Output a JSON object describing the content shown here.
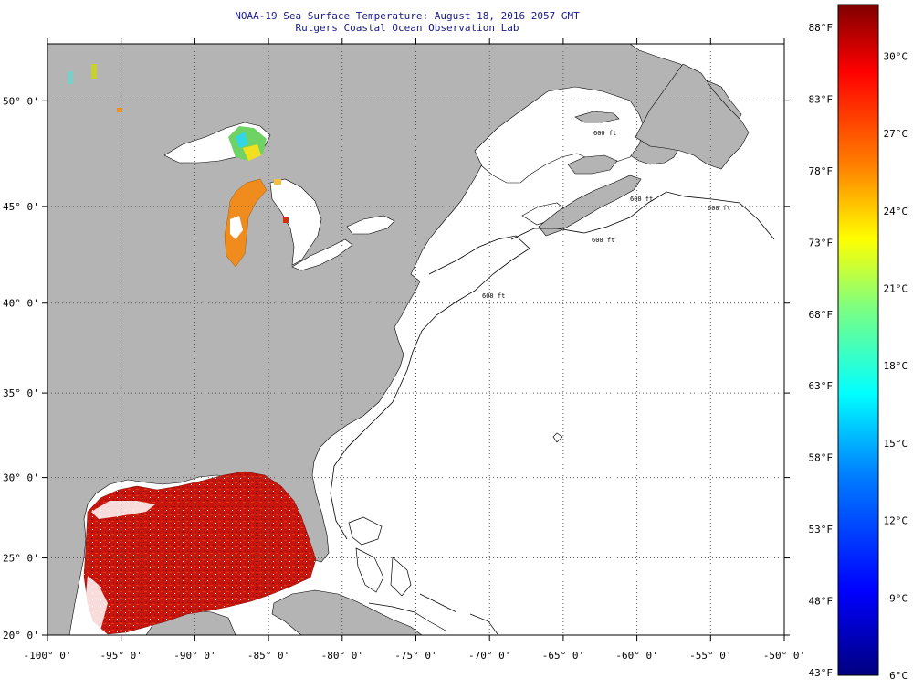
{
  "title": {
    "line1": "NOAA-19 Sea Surface Temperature:  August 18, 2016 2057 GMT",
    "line2": "Rutgers Coastal Ocean Observation Lab"
  },
  "map": {
    "lon_range": [
      -100,
      -50
    ],
    "lat_range": [
      20,
      52.5
    ],
    "projection": "mercator",
    "land_color": "#b4b4b4",
    "ocean_color": "#ffffff",
    "grid_style": "dotted",
    "lon_ticks": [
      {
        "value": -100,
        "label": "-100° 0'"
      },
      {
        "value": -95,
        "label": "-95° 0'"
      },
      {
        "value": -90,
        "label": "-90° 0'"
      },
      {
        "value": -85,
        "label": "-85° 0'"
      },
      {
        "value": -80,
        "label": "-80° 0'"
      },
      {
        "value": -75,
        "label": "-75° 0'"
      },
      {
        "value": -70,
        "label": "-70° 0'"
      },
      {
        "value": -65,
        "label": "-65° 0'"
      },
      {
        "value": -60,
        "label": "-60° 0'"
      },
      {
        "value": -55,
        "label": "-55° 0'"
      },
      {
        "value": -50,
        "label": "-50° 0'"
      }
    ],
    "lat_ticks": [
      {
        "value": 20,
        "label": "20° 0'"
      },
      {
        "value": 25,
        "label": "25° 0'"
      },
      {
        "value": 30,
        "label": "30° 0'"
      },
      {
        "value": 35,
        "label": "35° 0'"
      },
      {
        "value": 40,
        "label": "40° 0'"
      },
      {
        "value": 45,
        "label": "45° 0'"
      },
      {
        "value": 50,
        "label": "50° 0'"
      }
    ],
    "contour_labels": [
      "600 ft",
      "600 ft",
      "600 ft",
      "600 ft",
      "600 ft"
    ]
  },
  "colorbar": {
    "min_c": 6,
    "max_c": 32,
    "stops": [
      "#00007f",
      "#0000ff",
      "#007fff",
      "#00ffff",
      "#7fff7f",
      "#ffff00",
      "#ff7f00",
      "#ff0000",
      "#7f0000"
    ],
    "fahrenheit_labels": [
      {
        "value": 88,
        "label": "88°F"
      },
      {
        "value": 83,
        "label": "83°F"
      },
      {
        "value": 78,
        "label": "78°F"
      },
      {
        "value": 73,
        "label": "73°F"
      },
      {
        "value": 68,
        "label": "68°F"
      },
      {
        "value": 63,
        "label": "63°F"
      },
      {
        "value": 58,
        "label": "58°F"
      },
      {
        "value": 53,
        "label": "53°F"
      },
      {
        "value": 48,
        "label": "48°F"
      },
      {
        "value": 43,
        "label": "43°F"
      }
    ],
    "celsius_labels": [
      {
        "value": 30,
        "label": "30°C"
      },
      {
        "value": 27,
        "label": "27°C"
      },
      {
        "value": 24,
        "label": "24°C"
      },
      {
        "value": 21,
        "label": "21°C"
      },
      {
        "value": 18,
        "label": "18°C"
      },
      {
        "value": 15,
        "label": "15°C"
      },
      {
        "value": 12,
        "label": "12°C"
      },
      {
        "value": 9,
        "label": "9°C"
      },
      {
        "value": 6,
        "label": "6°C"
      }
    ]
  },
  "sst_regions": [
    {
      "name": "gulf-of-mexico",
      "approx_c": 30.5,
      "color": "#c80f0a"
    },
    {
      "name": "lake-michigan",
      "approx_c": 24,
      "color": "#f08c1e"
    },
    {
      "name": "lake-superior-east",
      "approx_c": 18,
      "color": "#6ed264"
    }
  ]
}
